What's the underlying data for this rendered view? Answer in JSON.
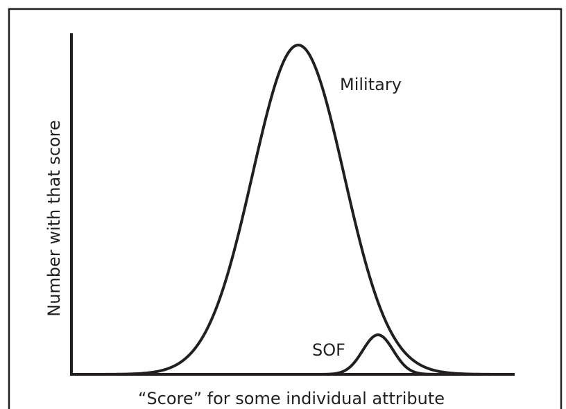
{
  "y_axis_label": "Number with that score",
  "x_axis_label": "“Score” for some individual attribute",
  "curves": [
    {
      "label": "Military"
    },
    {
      "label": "SOF"
    }
  ]
}
